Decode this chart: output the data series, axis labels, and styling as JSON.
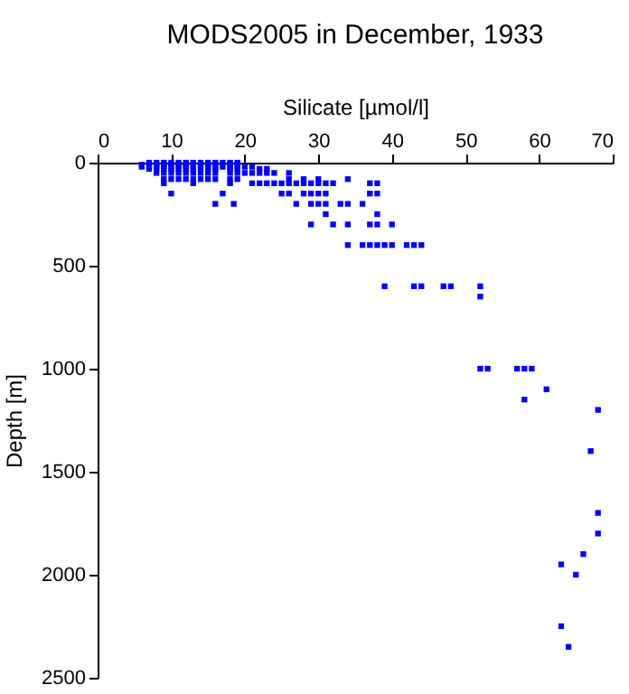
{
  "chart_data": {
    "type": "scatter",
    "title": "MODS2005 in December, 1933",
    "xlabel": "Silicate [µmol/l]",
    "ylabel": "Depth [m]",
    "xlim": [
      0,
      70
    ],
    "xticks": [
      0,
      10,
      20,
      30,
      40,
      50,
      60,
      70
    ],
    "ylim": [
      2500,
      0
    ],
    "yticks": [
      0,
      500,
      1000,
      1500,
      2000,
      2500
    ],
    "grid": false,
    "marker": "square",
    "series": [
      {
        "color": "#0000ff",
        "x": [
          7,
          8,
          9,
          10,
          11,
          12,
          13,
          14,
          15,
          16,
          17,
          18,
          19,
          6,
          7,
          8,
          9,
          10,
          11,
          12,
          13,
          14,
          15,
          16,
          18,
          19,
          6,
          7,
          8,
          9,
          10,
          11,
          12,
          13,
          14,
          15,
          16,
          17,
          18,
          19,
          20,
          21,
          7,
          8,
          9,
          10,
          11,
          12,
          13,
          14,
          15,
          16,
          18,
          19,
          22,
          23,
          8,
          9,
          10,
          11,
          12,
          13,
          14,
          15,
          16,
          18,
          19,
          20,
          21,
          22,
          23,
          24,
          26,
          9,
          10,
          11,
          12,
          13,
          14,
          15,
          16,
          18,
          19,
          26,
          28,
          30,
          34,
          9,
          13,
          18,
          21,
          22,
          23,
          24,
          25,
          26,
          27,
          28,
          29,
          30,
          31,
          32,
          37,
          38,
          10,
          17,
          25,
          26,
          28,
          29,
          30,
          31,
          37,
          38,
          16,
          18.5,
          27,
          29,
          30,
          31,
          33,
          34,
          36,
          31,
          38,
          29,
          32,
          34,
          37,
          38,
          40,
          34,
          36,
          37,
          38,
          39,
          40,
          42,
          43,
          44,
          39,
          43,
          44,
          47,
          48,
          52,
          52,
          52,
          53,
          57,
          58,
          59,
          61,
          58,
          68,
          67,
          68,
          68,
          66,
          63,
          65,
          63,
          64
        ],
        "values": [
          0,
          0,
          0,
          0,
          0,
          0,
          0,
          0,
          0,
          0,
          0,
          0,
          0,
          10,
          10,
          10,
          10,
          10,
          10,
          10,
          10,
          10,
          10,
          10,
          10,
          10,
          20,
          20,
          20,
          20,
          20,
          20,
          20,
          20,
          20,
          20,
          20,
          20,
          20,
          20,
          20,
          20,
          30,
          30,
          30,
          30,
          30,
          30,
          30,
          30,
          30,
          30,
          30,
          30,
          30,
          30,
          50,
          50,
          50,
          50,
          50,
          50,
          50,
          50,
          50,
          50,
          50,
          50,
          50,
          50,
          50,
          50,
          50,
          80,
          80,
          80,
          80,
          80,
          80,
          80,
          80,
          80,
          80,
          80,
          80,
          80,
          80,
          100,
          100,
          100,
          100,
          100,
          100,
          100,
          100,
          100,
          100,
          100,
          100,
          100,
          100,
          100,
          100,
          100,
          150,
          150,
          150,
          150,
          150,
          150,
          150,
          150,
          150,
          150,
          200,
          200,
          200,
          200,
          200,
          200,
          200,
          200,
          200,
          250,
          250,
          300,
          300,
          300,
          300,
          300,
          300,
          400,
          400,
          400,
          400,
          400,
          400,
          400,
          400,
          400,
          600,
          600,
          600,
          600,
          600,
          600,
          650,
          1000,
          1000,
          1000,
          1000,
          1000,
          1100,
          1150,
          1200,
          1400,
          1700,
          1800,
          1900,
          1950,
          2000,
          2250,
          2350
        ]
      }
    ]
  }
}
